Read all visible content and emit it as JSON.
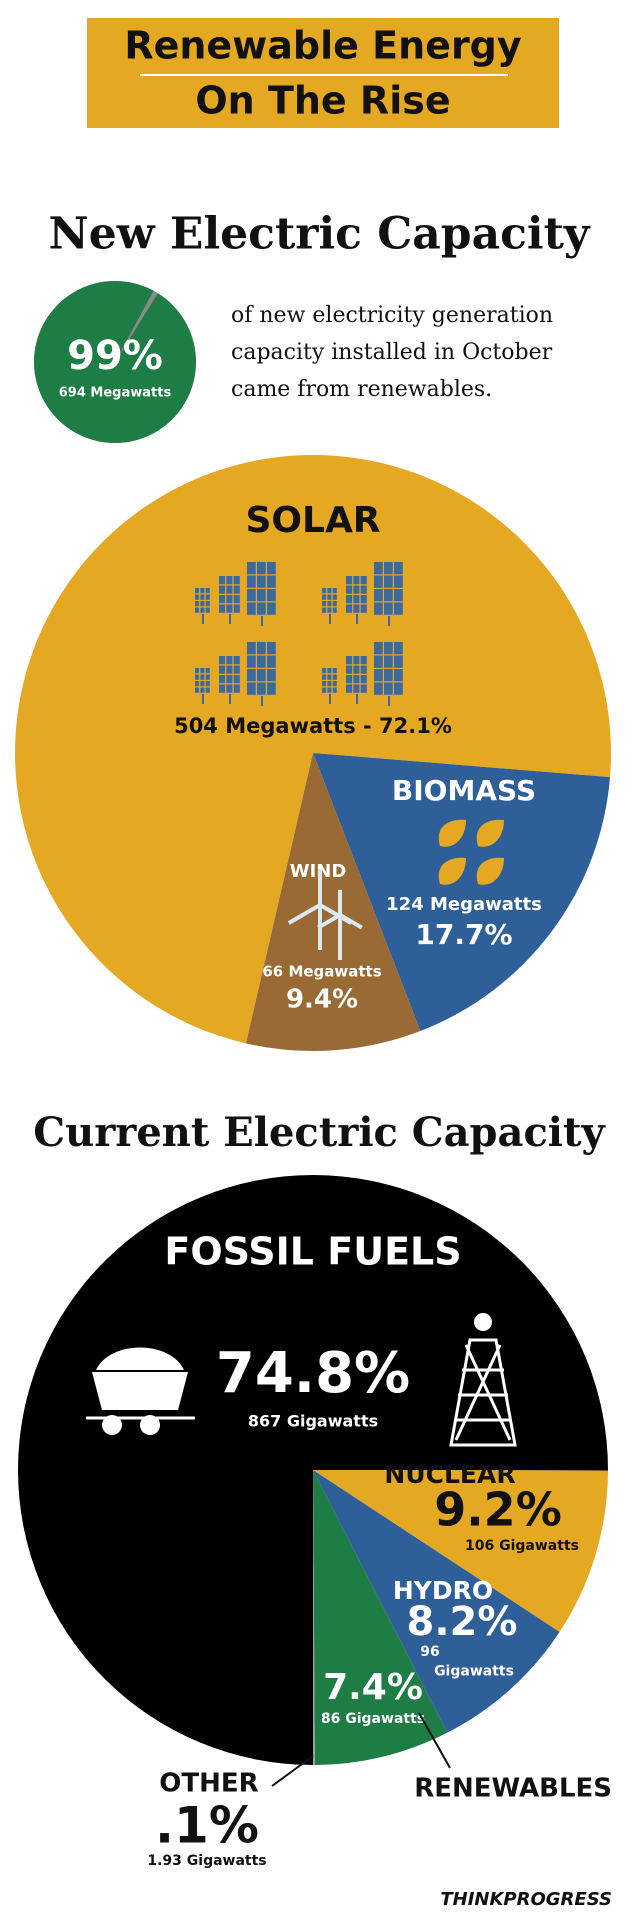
{
  "header": {
    "title_lines": [
      "Renewable Energy",
      "On The Rise"
    ]
  },
  "chart_data": [
    {
      "type": "pie",
      "title": "New Electric Capacity",
      "highlight": {
        "value": 99,
        "value_label": "99%",
        "amount": "694 Megawatts",
        "color": "#1e7c45",
        "caption_lines": [
          "of new electricity generation",
          "capacity installed in October",
          "came from renewables."
        ]
      },
      "slices": [
        {
          "name": "SOLAR",
          "value": 72.1,
          "value_label": "504 Megawatts - 72.1%",
          "color": "#e4a823"
        },
        {
          "name": "BIOMASS",
          "value": 17.7,
          "value_label": "17.7%",
          "amount": "124 Megawatts",
          "color": "#2f5f98"
        },
        {
          "name": "WIND",
          "value": 9.4,
          "value_label": "9.4%",
          "amount": "66 Megawatts",
          "color": "#9a6a35"
        }
      ]
    },
    {
      "type": "pie",
      "title": "Current Electric Capacity",
      "slices": [
        {
          "name": "FOSSIL FUELS",
          "value": 74.8,
          "value_label": "74.8%",
          "amount": "867 Gigawatts",
          "color": "#000000"
        },
        {
          "name": "NUCLEAR",
          "value": 9.2,
          "value_label": "9.2%",
          "amount": "106 Gigawatts",
          "color": "#e4a823"
        },
        {
          "name": "HYDRO",
          "value": 8.2,
          "value_label": "8.2%",
          "amount": "96 Gigawatts",
          "color": "#2f5f98"
        },
        {
          "name": "RENEWABLES",
          "value": 7.4,
          "value_label": "7.4%",
          "amount": "86 Gigawatts",
          "color": "#1e7c45"
        },
        {
          "name": "OTHER",
          "value": 0.1,
          "value_label": ".1%",
          "amount": "1.93 Gigawatts",
          "color": "#9aa0a6"
        }
      ]
    }
  ],
  "footer": {
    "brand": "THINKPROGRESS"
  }
}
